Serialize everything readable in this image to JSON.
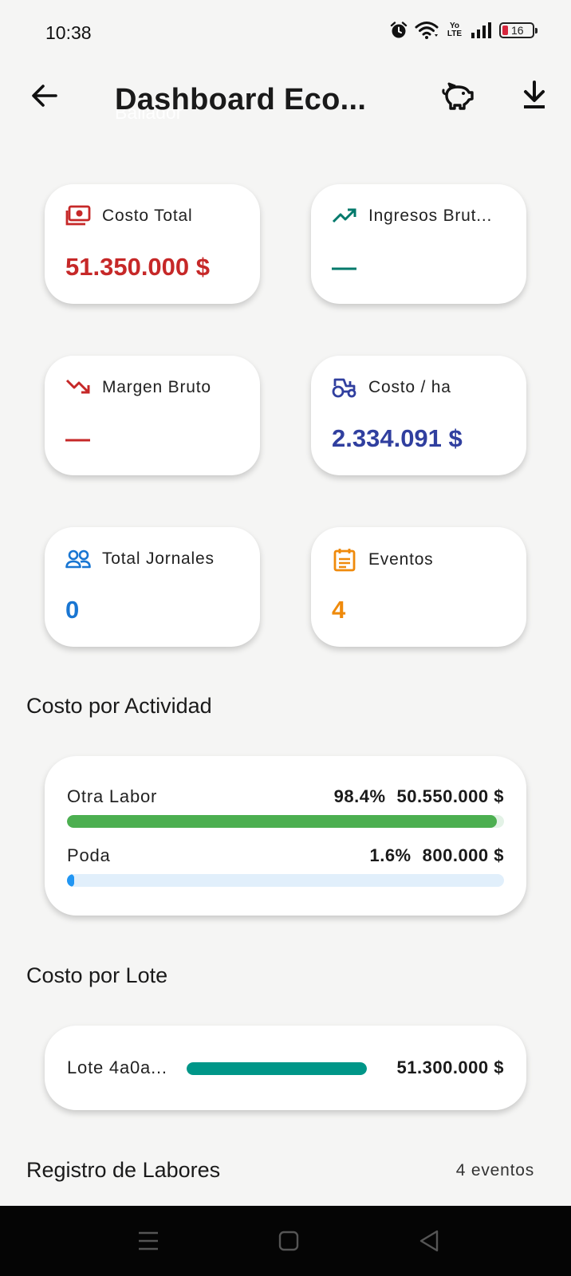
{
  "status_bar": {
    "time": "10:38",
    "network": "Yo LTE",
    "battery": "16"
  },
  "header": {
    "title": "Dashboard Eco...",
    "subtitle": "Bailador",
    "icons": {
      "back": "arrow-left-icon",
      "savings": "piggy-bank-icon",
      "download": "download-icon"
    }
  },
  "kpis": [
    {
      "label": "Costo Total",
      "value": "51.350.000 $",
      "icon": "money-icon",
      "color": "#c62828"
    },
    {
      "label": "Ingresos Brut...",
      "value": "—",
      "icon": "trending-up-icon",
      "color": "#00796b"
    },
    {
      "label": "Margen Bruto",
      "value": "—",
      "icon": "trending-down-icon",
      "color": "#c62828"
    },
    {
      "label": "Costo / ha",
      "value": "2.334.091 $",
      "icon": "tractor-icon",
      "color": "#303f9f"
    },
    {
      "label": "Total Jornales",
      "value": "0",
      "icon": "people-icon",
      "color": "#1976d2"
    },
    {
      "label": "Eventos",
      "value": "4",
      "icon": "calendar-icon",
      "color": "#ef8a0b"
    }
  ],
  "costo_actividad": {
    "title": "Costo por Actividad",
    "items": [
      {
        "name": "Otra Labor",
        "percent": "98.4%",
        "amount": "50.550.000 $",
        "fraction": 0.984,
        "color": "#4caf50"
      },
      {
        "name": "Poda",
        "percent": "1.6%",
        "amount": "800.000 $",
        "fraction": 0.016,
        "color": "#2196f3"
      }
    ]
  },
  "costo_lote": {
    "title": "Costo por Lote",
    "items": [
      {
        "name": "Lote 4a0a...",
        "amount": "51.300.000 $",
        "fraction": 1.0,
        "color": "#009688"
      }
    ]
  },
  "registro": {
    "title": "Registro de Labores",
    "count": "4 eventos"
  },
  "nav": {
    "icons": [
      "menu-icon",
      "home-square-icon",
      "back-triangle-icon"
    ]
  }
}
